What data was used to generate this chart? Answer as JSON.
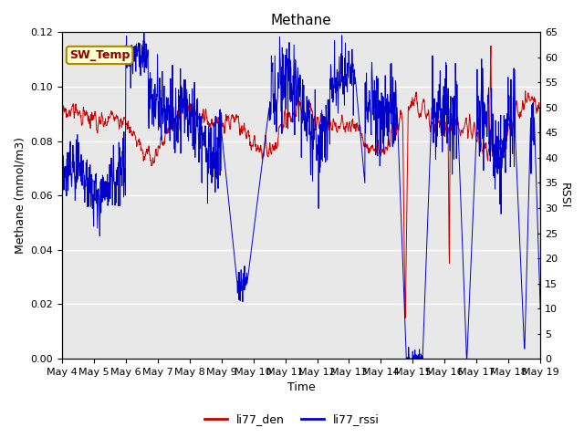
{
  "title": "Methane",
  "ylabel_left": "Methane (mmol/m3)",
  "ylabel_right": "RSSI",
  "xlabel": "Time",
  "ylim_left": [
    0.0,
    0.12
  ],
  "ylim_right": [
    0,
    65
  ],
  "yticks_left": [
    0.0,
    0.02,
    0.04,
    0.06,
    0.08,
    0.1,
    0.12
  ],
  "yticks_right": [
    0,
    5,
    10,
    15,
    20,
    25,
    30,
    35,
    40,
    45,
    50,
    55,
    60,
    65
  ],
  "xticklabels": [
    "May 4",
    "May 5",
    "May 6",
    "May 7",
    "May 8",
    "May 9",
    "May 10",
    "May 11",
    "May 12",
    "May 13",
    "May 14",
    "May 15",
    "May 16",
    "May 17",
    "May 18",
    "May 19"
  ],
  "line1_color": "#cc0000",
  "line2_color": "#0000cc",
  "line1_label": "li77_den",
  "line2_label": "li77_rssi",
  "bg_color": "#e8e8e8",
  "annotation_text": "SW_Temp",
  "annotation_bg": "#ffffcc",
  "annotation_border": "#aa8800",
  "title_fontsize": 11,
  "axis_fontsize": 9,
  "tick_fontsize": 8,
  "legend_fontsize": 9
}
